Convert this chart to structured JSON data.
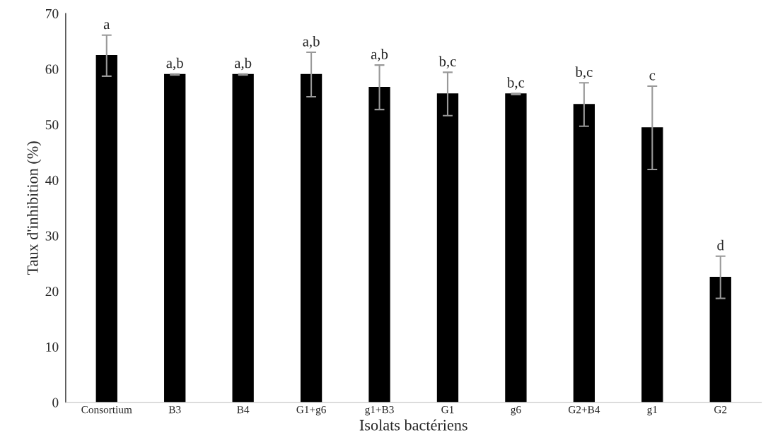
{
  "chart_data": {
    "type": "bar",
    "xlabel": "Isolats bactériens",
    "ylabel": "Taux d'inhibition (%)",
    "categories": [
      "Consortium",
      "B3",
      "B4",
      "G1+g6",
      "g1+B3",
      "G1",
      "g6",
      "G2+B4",
      "g1",
      "G2"
    ],
    "values": [
      62.4,
      59.0,
      59.0,
      59.0,
      56.7,
      55.5,
      55.5,
      53.6,
      49.4,
      22.5
    ],
    "errors": [
      3.7,
      0.1,
      0.1,
      4.0,
      4.0,
      3.9,
      0.1,
      3.9,
      7.5,
      3.8
    ],
    "color": "#000000",
    "ylim": [
      0,
      70
    ],
    "yticks": [
      0,
      10,
      20,
      30,
      40,
      50,
      60,
      70
    ],
    "grid": false,
    "legend": false,
    "annotations": [
      "a",
      "a,b",
      "a,b",
      "a,b",
      "a,b",
      "b,c",
      "b,c",
      "b,c",
      "c",
      "d"
    ]
  }
}
